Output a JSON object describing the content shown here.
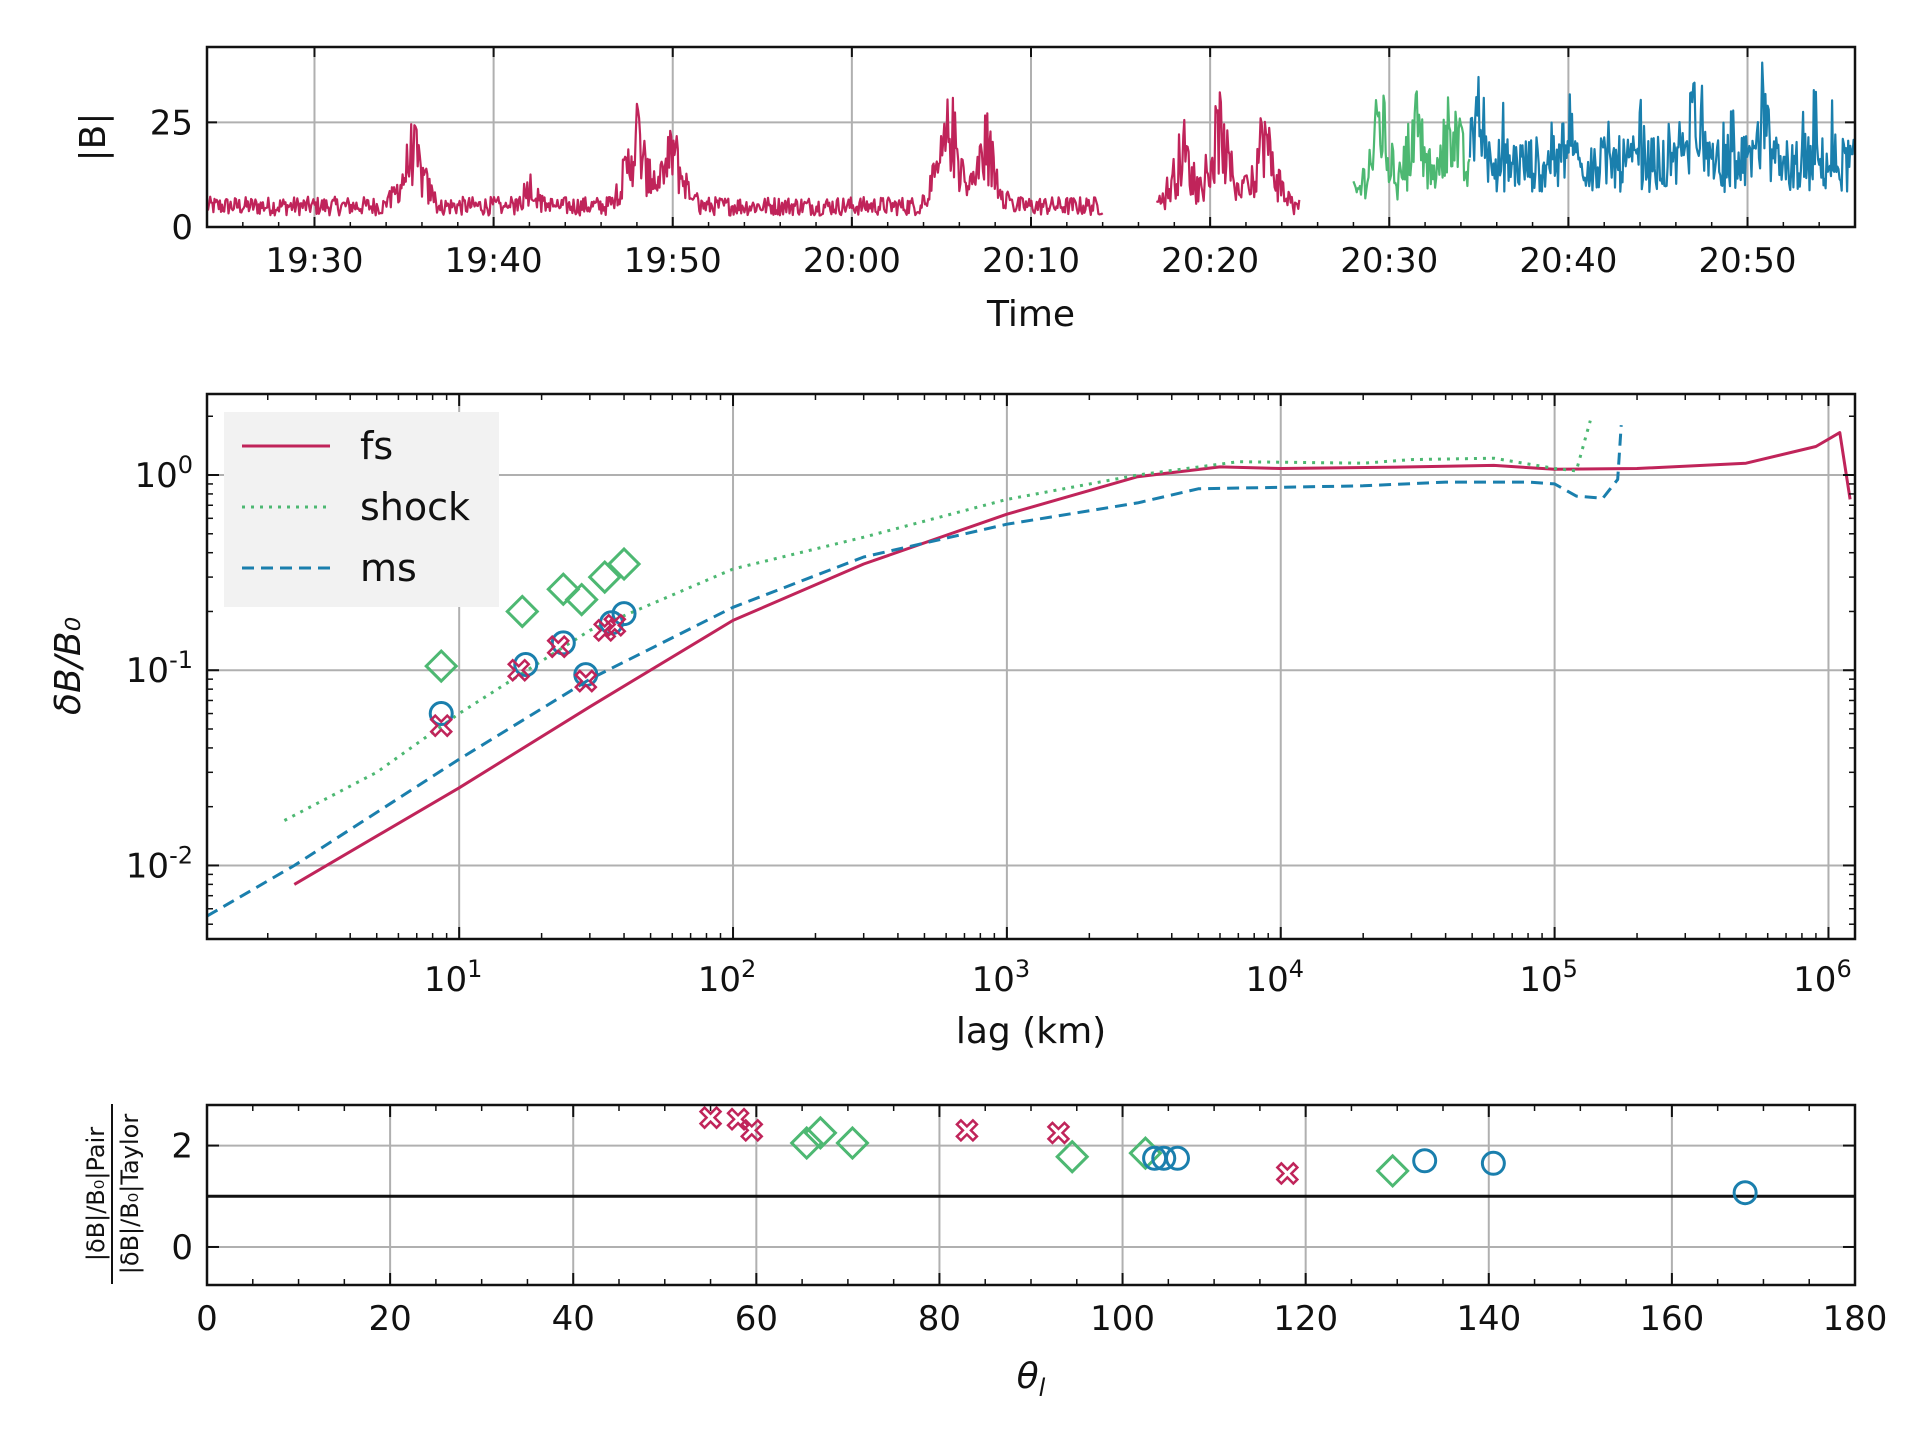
{
  "chart_data": [
    {
      "type": "line",
      "panel": "top",
      "xlabel": "Time",
      "ylabel": "|B|",
      "x_ticks": [
        "19:30",
        "19:40",
        "19:50",
        "20:00",
        "20:10",
        "20:20",
        "20:30",
        "20:40",
        "20:50"
      ],
      "y_ticks": [
        "0",
        "25"
      ],
      "x_range_minutes": [
        "19:24",
        "20:56"
      ],
      "ylim": [
        0,
        43
      ],
      "series": [
        {
          "color": "#C0245A",
          "segments": [
            [
              "19:24",
              "20:11"
            ],
            [
              "20:11",
              "20:14"
            ],
            [
              "20:17",
              "20:25"
            ]
          ],
          "baseline": 5,
          "bursts": [
            [
              "19:35.5",
              28
            ],
            [
              "19:42",
              15
            ],
            [
              "19:48",
              33
            ],
            [
              "19:50",
              28
            ],
            [
              "20:05.5",
              36
            ],
            [
              "20:07.5",
              30
            ],
            [
              "20:18.5",
              28
            ],
            [
              "20:20.5",
              35
            ],
            [
              "20:23",
              33
            ]
          ]
        },
        {
          "color": "#4DB872",
          "segments": [
            [
              "20:28",
              "20:34.5"
            ]
          ],
          "baseline": 8,
          "bursts": [
            [
              "20:29.5",
              38
            ],
            [
              "20:31.5",
              38
            ],
            [
              "20:33.5",
              40
            ]
          ]
        },
        {
          "color": "#1A7FAD",
          "segments": [
            [
              "20:34.5",
              "20:56"
            ]
          ],
          "baseline": 15,
          "bursts": [
            [
              "20:35",
              38
            ],
            [
              "20:40",
              35
            ],
            [
              "20:47",
              41
            ],
            [
              "20:51",
              35
            ]
          ]
        }
      ]
    },
    {
      "type": "line",
      "panel": "middle",
      "xlabel": "lag (km)",
      "ylabel": "δB/B₀",
      "xscale": "log",
      "yscale": "log",
      "xlim": [
        1.2,
        1250000
      ],
      "ylim": [
        0.0042,
        2.6
      ],
      "x_ticks": [
        {
          "base": "10",
          "exp": "1"
        },
        {
          "base": "10",
          "exp": "2"
        },
        {
          "base": "10",
          "exp": "3"
        },
        {
          "base": "10",
          "exp": "4"
        },
        {
          "base": "10",
          "exp": "5"
        },
        {
          "base": "10",
          "exp": "6"
        }
      ],
      "y_ticks": [
        {
          "base": "10",
          "exp": "-2"
        },
        {
          "base": "10",
          "exp": "-1"
        },
        {
          "base": "10",
          "exp": "0"
        }
      ],
      "legend": {
        "placement": "top-left",
        "entries": [
          "fs",
          "shock",
          "ms"
        ]
      },
      "series": [
        {
          "name": "fs",
          "color": "#C0245A",
          "style": "solid",
          "points": [
            [
              2.5,
              0.008
            ],
            [
              10,
              0.025
            ],
            [
              30,
              0.065
            ],
            [
              100,
              0.18
            ],
            [
              300,
              0.35
            ],
            [
              1000,
              0.63
            ],
            [
              3000,
              0.98
            ],
            [
              6000,
              1.1
            ],
            [
              10000,
              1.08
            ],
            [
              30000,
              1.1
            ],
            [
              60000,
              1.12
            ],
            [
              100000,
              1.07
            ],
            [
              200000,
              1.08
            ],
            [
              500000,
              1.15
            ],
            [
              900000,
              1.4
            ],
            [
              1100000,
              1.65
            ],
            [
              1200000,
              0.75
            ]
          ]
        },
        {
          "name": "shock",
          "color": "#4DB872",
          "style": "dotted",
          "points": [
            [
              2.3,
              0.017
            ],
            [
              5,
              0.03
            ],
            [
              10,
              0.06
            ],
            [
              30,
              0.16
            ],
            [
              100,
              0.33
            ],
            [
              300,
              0.48
            ],
            [
              1000,
              0.75
            ],
            [
              3000,
              1.0
            ],
            [
              7000,
              1.17
            ],
            [
              20000,
              1.15
            ],
            [
              30000,
              1.2
            ],
            [
              60000,
              1.22
            ],
            [
              100000,
              1.08
            ],
            [
              120000,
              1.05
            ],
            [
              135000,
              1.9
            ]
          ]
        },
        {
          "name": "ms",
          "color": "#1A7FAD",
          "style": "dashed",
          "points": [
            [
              1.2,
              0.0055
            ],
            [
              2.5,
              0.01
            ],
            [
              10,
              0.035
            ],
            [
              30,
              0.09
            ],
            [
              100,
              0.21
            ],
            [
              300,
              0.38
            ],
            [
              1000,
              0.56
            ],
            [
              3000,
              0.72
            ],
            [
              5000,
              0.85
            ],
            [
              20000,
              0.88
            ],
            [
              40000,
              0.92
            ],
            [
              80000,
              0.92
            ],
            [
              100000,
              0.9
            ],
            [
              120000,
              0.78
            ],
            [
              150000,
              0.76
            ],
            [
              170000,
              0.95
            ],
            [
              175000,
              1.8
            ]
          ]
        }
      ],
      "markers": [
        {
          "series": "shock",
          "shape": "diamond",
          "points": [
            [
              8.6,
              0.105
            ],
            [
              17,
              0.2
            ],
            [
              24,
              0.26
            ],
            [
              28,
              0.23
            ],
            [
              34,
              0.3
            ],
            [
              40,
              0.35
            ]
          ]
        },
        {
          "series": "ms",
          "shape": "circle",
          "points": [
            [
              8.6,
              0.06
            ],
            [
              17.5,
              0.107
            ],
            [
              24,
              0.138
            ],
            [
              29,
              0.095
            ],
            [
              36,
              0.175
            ],
            [
              40,
              0.195
            ]
          ]
        },
        {
          "series": "fs",
          "shape": "x",
          "points": [
            [
              8.6,
              0.052
            ],
            [
              16.5,
              0.1
            ],
            [
              23,
              0.132
            ],
            [
              29,
              0.088
            ],
            [
              34,
              0.16
            ],
            [
              37,
              0.17
            ]
          ]
        }
      ]
    },
    {
      "type": "scatter",
      "panel": "bottom",
      "xlabel": "θ",
      "xlabel_sub": "l",
      "ylabel_numerator": "|δB|/B₀|Pair",
      "ylabel_denominator": "|δB|/B₀|Taylor",
      "xlim": [
        0,
        180
      ],
      "ylim": [
        -0.75,
        2.8
      ],
      "x_ticks": [
        "0",
        "20",
        "40",
        "60",
        "80",
        "100",
        "120",
        "140",
        "160",
        "180"
      ],
      "y_ticks": [
        "0",
        "2"
      ],
      "reference_line": 1,
      "markers": [
        {
          "series": "fs",
          "shape": "x",
          "points": [
            [
              55,
              2.55
            ],
            [
              58,
              2.52
            ],
            [
              59.5,
              2.3
            ],
            [
              83,
              2.3
            ],
            [
              93,
              2.25
            ],
            [
              118,
              1.45
            ]
          ]
        },
        {
          "series": "shock",
          "shape": "diamond",
          "points": [
            [
              65.5,
              2.05
            ],
            [
              67,
              2.25
            ],
            [
              70.5,
              2.05
            ],
            [
              94.5,
              1.78
            ],
            [
              102.5,
              1.85
            ],
            [
              129.5,
              1.5
            ]
          ]
        },
        {
          "series": "ms",
          "shape": "circle",
          "points": [
            [
              103.5,
              1.75
            ],
            [
              104.5,
              1.75
            ],
            [
              106,
              1.75
            ],
            [
              133,
              1.7
            ],
            [
              140.5,
              1.65
            ],
            [
              168,
              1.07
            ]
          ]
        }
      ]
    }
  ],
  "colors": {
    "fs": "#C0245A",
    "shock": "#4DB872",
    "ms": "#1A7FAD"
  }
}
